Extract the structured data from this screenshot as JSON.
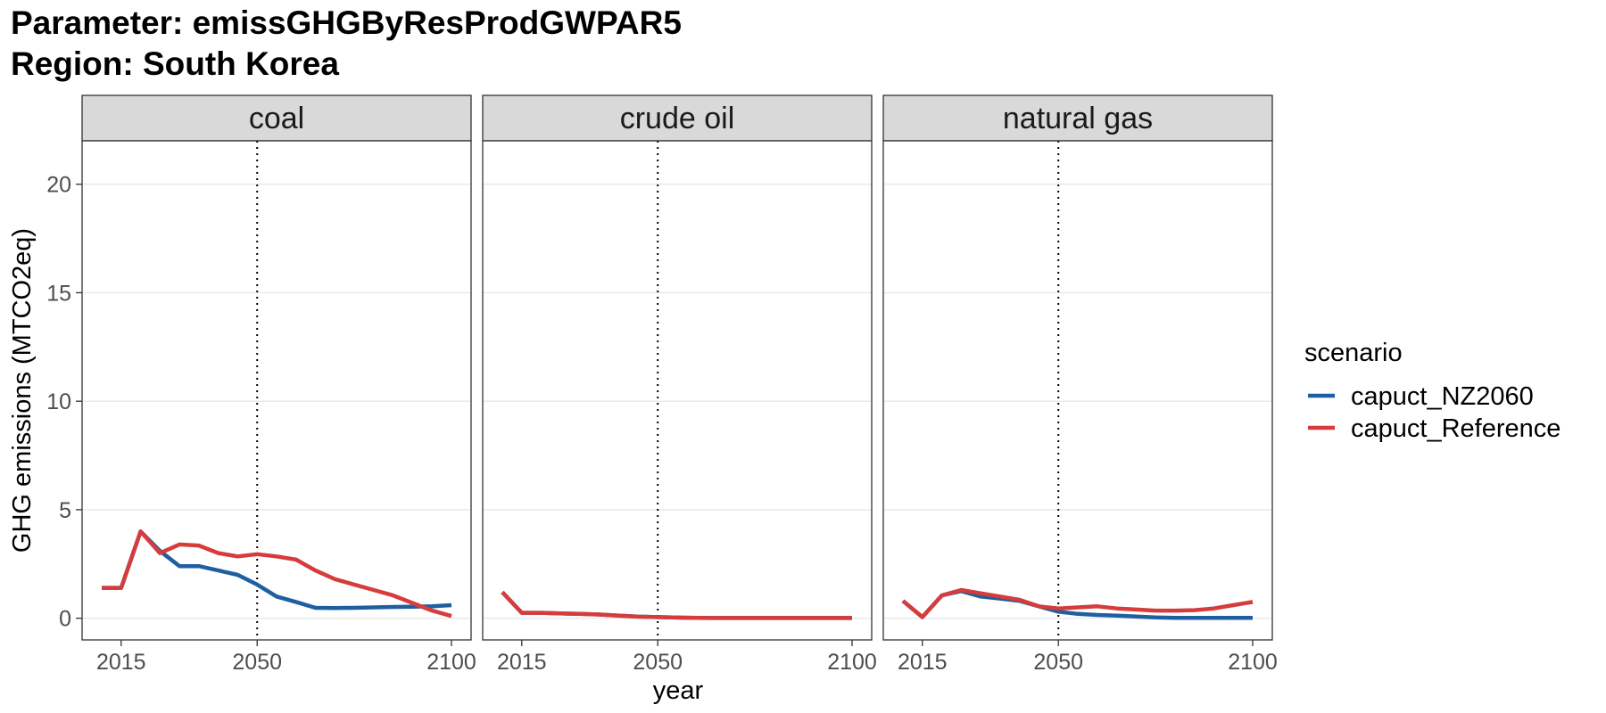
{
  "title": {
    "line1": "Parameter: emissGHGByResProdGWPAR5",
    "line2": "Region: South Korea"
  },
  "chart_data": {
    "type": "line",
    "facet_by": "resource",
    "facets": [
      "coal",
      "crude oil",
      "natural gas"
    ],
    "xlabel": "year",
    "ylabel": "GHG emissions (MTCO2eq)",
    "x_ticks": [
      2015,
      2050,
      2100
    ],
    "y_ticks": [
      0,
      5,
      10,
      15,
      20
    ],
    "xlim": [
      2010,
      2100
    ],
    "ylim": [
      -1,
      22
    ],
    "reference_line": {
      "x": 2050,
      "style": "dotted"
    },
    "grid": true,
    "legend": {
      "title": "scenario",
      "position": "right"
    },
    "x": [
      2010,
      2015,
      2020,
      2025,
      2030,
      2035,
      2040,
      2045,
      2050,
      2055,
      2060,
      2065,
      2070,
      2075,
      2080,
      2085,
      2090,
      2095,
      2100
    ],
    "series": [
      {
        "name": "capuct_NZ2060",
        "color": "#1f5fa0",
        "facet_values": {
          "coal": [
            1.4,
            1.4,
            4.0,
            3.1,
            2.4,
            2.4,
            2.2,
            2.0,
            1.55,
            1.0,
            0.75,
            0.48,
            0.47,
            0.48,
            0.5,
            0.52,
            0.53,
            0.55,
            0.6
          ],
          "crude oil": [
            1.2,
            0.25,
            0.25,
            0.22,
            0.2,
            0.17,
            0.12,
            0.07,
            0.05,
            0.03,
            0.02,
            0.01,
            0.01,
            0.01,
            0.01,
            0.01,
            0.01,
            0.01,
            0.01
          ],
          "natural gas": [
            0.8,
            0.05,
            1.05,
            1.25,
            1.0,
            0.9,
            0.8,
            0.55,
            0.3,
            0.2,
            0.15,
            0.12,
            0.08,
            0.04,
            0.02,
            0.02,
            0.02,
            0.02,
            0.02
          ]
        }
      },
      {
        "name": "capuct_Reference",
        "color": "#d63c3c",
        "facet_values": {
          "coal": [
            1.4,
            1.4,
            4.0,
            3.0,
            3.4,
            3.35,
            3.0,
            2.85,
            2.95,
            2.85,
            2.7,
            2.2,
            1.8,
            1.55,
            1.3,
            1.05,
            0.7,
            0.35,
            0.1
          ],
          "crude oil": [
            1.2,
            0.25,
            0.25,
            0.22,
            0.2,
            0.17,
            0.12,
            0.07,
            0.05,
            0.03,
            0.02,
            0.01,
            0.01,
            0.01,
            0.01,
            0.01,
            0.01,
            0.01,
            0.01
          ],
          "natural gas": [
            0.8,
            0.05,
            1.05,
            1.3,
            1.15,
            1.0,
            0.85,
            0.55,
            0.45,
            0.5,
            0.55,
            0.45,
            0.4,
            0.35,
            0.35,
            0.37,
            0.45,
            0.6,
            0.75
          ]
        }
      }
    ]
  }
}
